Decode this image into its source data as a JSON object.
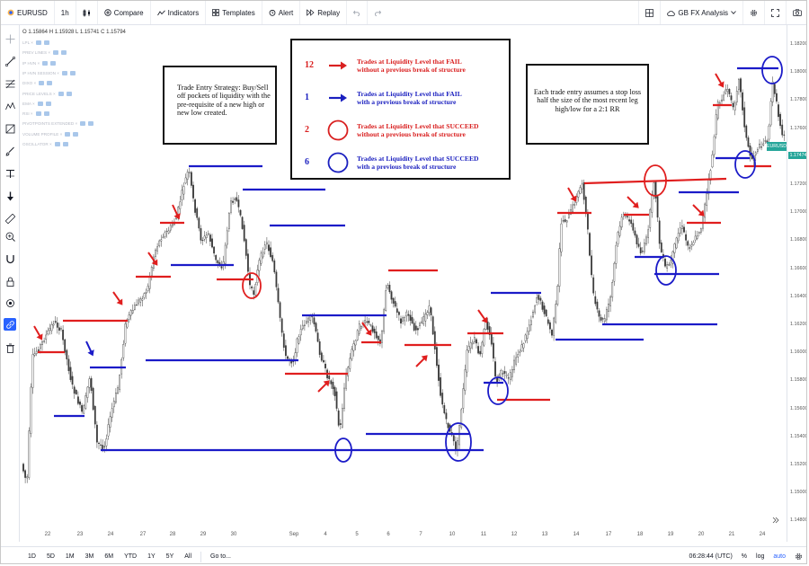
{
  "toolbar": {
    "symbol": "EURUSD",
    "interval": "1h",
    "compare": "Compare",
    "indicators": "Indicators",
    "templates": "Templates",
    "alert": "Alert",
    "replay": "Replay",
    "layout_name": "GB FX Analysis"
  },
  "legend": {
    "ohlc": "O 1.15864  H 1.15928  L 1.15741  C 1.15794",
    "indicator_rows": [
      "LPL ×",
      "PREV LINES ×",
      "IP HVN ×",
      "IP HVN SESSION ×",
      "DIXO ×",
      "PRICE LEVELS ×",
      "EMA ×",
      "RSI ×",
      "PIVOTPOINTS EXTENDED ×",
      "VOLUME PROFILE ×",
      "OSCILLATOR ×"
    ]
  },
  "notes": {
    "left": "Trade Entry Strategy: Buy/Sell off pockets of liquidity with the pre-requisite of a new high or new low created.",
    "right": "Each trade entry assumes a stop loss half the size of the most recent leg high/low for a 2:1 RR",
    "legend_rows": [
      {
        "count": "12",
        "line1": "Trades at Liquidity Level that FAIL",
        "line2": "without a previous break of structure",
        "color": "#d92020",
        "symbol": "arrow"
      },
      {
        "count": "1",
        "line1": "Trades at Liquidity Level that FAIL",
        "line2": "with a previous break of structure",
        "color": "#1a1fbf",
        "symbol": "arrow"
      },
      {
        "count": "2",
        "line1": "Trades at Liquidity Level that SUCCEED",
        "line2": "without a previous break of structure",
        "color": "#d92020",
        "symbol": "circle"
      },
      {
        "count": "6",
        "line1": "Trades at Liquidity Level that SUCCEED",
        "line2": "with a previous break of structure",
        "color": "#1a1fbf",
        "symbol": "circle"
      }
    ]
  },
  "price_axis": {
    "ticks": [
      "1.18200",
      "1.18000",
      "1.17800",
      "1.17600",
      "1.17400",
      "1.17200",
      "1.17000",
      "1.16800",
      "1.16600",
      "1.16400",
      "1.16200",
      "1.16000",
      "1.15800",
      "1.15600",
      "1.15400",
      "1.15200",
      "1.15000",
      "1.14800"
    ],
    "symbol_tag": "EURUSD",
    "last_price": "1.17474"
  },
  "time_axis": {
    "ticks": [
      "22",
      "23",
      "24",
      "27",
      "28",
      "29",
      "30",
      "Sep",
      "4",
      "5",
      "6",
      "7",
      "10",
      "11",
      "12",
      "13",
      "14",
      "17",
      "18",
      "19",
      "20",
      "21",
      "24"
    ]
  },
  "bottom_bar": {
    "ranges": [
      "1D",
      "5D",
      "1M",
      "3M",
      "6M",
      "YTD",
      "1Y",
      "5Y",
      "All"
    ],
    "goto": "Go to...",
    "clock": "06:28:44 (UTC)",
    "percent": "%",
    "log": "log",
    "auto": "auto"
  },
  "colors": {
    "up": "#26a69a",
    "down": "#ef5350",
    "candle": "#4a4a4a",
    "red_annotation": "#e01e1e",
    "blue_annotation": "#1b1bc8"
  },
  "chart_data": {
    "type": "candlestick-annotated",
    "ylim": [
      1.147,
      1.183
    ]
  }
}
